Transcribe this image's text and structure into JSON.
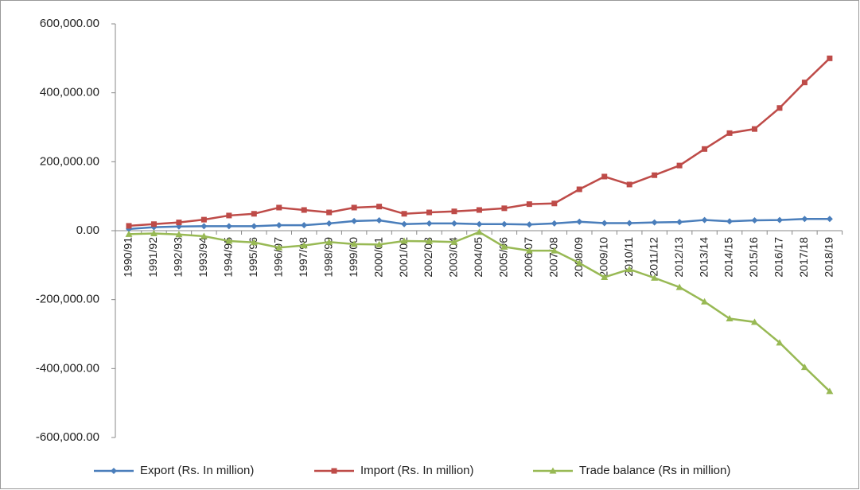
{
  "chart_data": {
    "type": "line",
    "categories": [
      "1990/91",
      "1991/92",
      "1992/93",
      "1993/94",
      "1994/95",
      "1995/96",
      "1996/97",
      "1997/98",
      "1998/99",
      "1999/00",
      "2000/01",
      "2001/02",
      "2002/03",
      "2003/04",
      "2004/05",
      "2005/06",
      "2006/07",
      "2007/08",
      "2008/09",
      "2009/10",
      "2010/11",
      "2011/12",
      "2012/13",
      "2013/14",
      "2014/15",
      "2015/16",
      "2016/17",
      "2017/18",
      "2018/19"
    ],
    "series": [
      {
        "name": "Export (Rs. In million)",
        "color": "#4a7ebb",
        "marker": "diamond",
        "values": [
          5000,
          10000,
          12000,
          13000,
          13000,
          13000,
          16000,
          16000,
          21000,
          28000,
          30000,
          19000,
          21000,
          21000,
          19000,
          19000,
          18000,
          21000,
          26000,
          22000,
          22000,
          24000,
          25000,
          31000,
          27000,
          30000,
          31000,
          34000,
          34000
        ]
      },
      {
        "name": "Import (Rs. In million)",
        "color": "#be4b48",
        "marker": "square",
        "values": [
          14000,
          19000,
          24000,
          32000,
          44000,
          49000,
          67000,
          60000,
          53000,
          67000,
          70000,
          49000,
          53000,
          56000,
          60000,
          65000,
          77000,
          79000,
          120000,
          157000,
          134000,
          161000,
          189000,
          237000,
          283000,
          295000,
          356000,
          430000,
          500000
        ]
      },
      {
        "name": "Trade balance (Rs in million)",
        "color": "#98b954",
        "marker": "triangle",
        "values": [
          -10000,
          -8000,
          -11000,
          -16000,
          -30000,
          -34000,
          -49000,
          -43000,
          -33000,
          -39000,
          -40000,
          -30000,
          -31000,
          -33000,
          -4000,
          -47000,
          -58000,
          -58000,
          -94000,
          -135000,
          -112000,
          -137000,
          -164000,
          -206000,
          -255000,
          -265000,
          -325000,
          -396000,
          -466000
        ]
      }
    ],
    "ylim": [
      -600000,
      600000
    ],
    "yticks": [
      {
        "value": -600000,
        "label": "-600,000.00"
      },
      {
        "value": -400000,
        "label": "-400,000.00"
      },
      {
        "value": -200000,
        "label": "-200,000.00"
      },
      {
        "value": 0,
        "label": "0.00"
      },
      {
        "value": 200000,
        "label": "200,000.00"
      },
      {
        "value": 400000,
        "label": "400,000.00"
      },
      {
        "value": 600000,
        "label": "600,000.00"
      }
    ],
    "grid": false,
    "legend": "bottom"
  }
}
